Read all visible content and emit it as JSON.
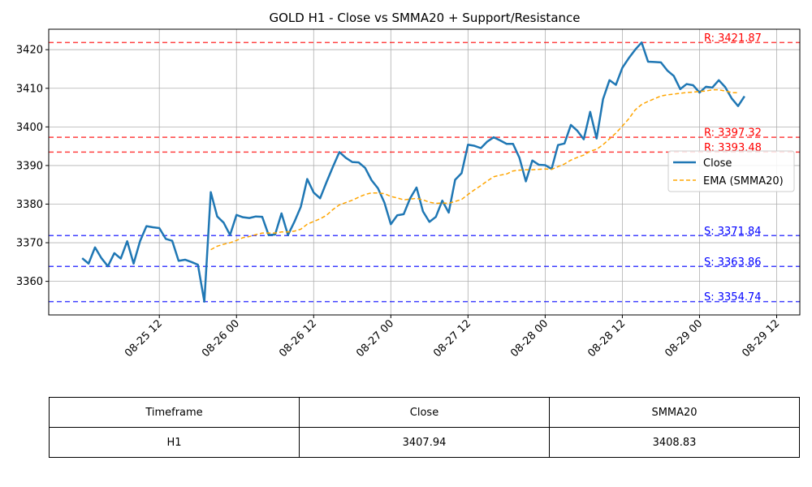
{
  "chart_data": {
    "type": "line",
    "title": "GOLD H1 - Close vs SMMA20 + Support/Resistance",
    "xlabel": "",
    "ylabel": "",
    "x_ticks": [
      "08-25 12",
      "08-26 00",
      "08-26 12",
      "08-27 00",
      "08-27 12",
      "08-28 00",
      "08-28 12",
      "08-29 00",
      "08-29 12"
    ],
    "x_tick_hours": [
      12,
      24,
      36,
      48,
      60,
      72,
      84,
      96,
      108
    ],
    "y_ticks": [
      3360,
      3370,
      3380,
      3390,
      3400,
      3410,
      3420
    ],
    "xlim": [
      -5.2,
      111.6
    ],
    "ylim": [
      3351.3,
      3425.3
    ],
    "grid": true,
    "legend_position": "right",
    "series": [
      {
        "name": "Close",
        "color": "#1f77b4",
        "style": "solid",
        "x_start_hour": 0,
        "values": [
          3366.0,
          3364.6,
          3368.8,
          3366.0,
          3363.9,
          3367.3,
          3365.9,
          3370.4,
          3364.6,
          3370.4,
          3374.3,
          3374.0,
          3373.8,
          3371.0,
          3370.5,
          3365.3,
          3365.6,
          3365.0,
          3364.3,
          3354.74,
          3383.1,
          3376.8,
          3375.2,
          3372.0,
          3377.2,
          3376.6,
          3376.4,
          3376.8,
          3376.7,
          3372.0,
          3372.1,
          3377.6,
          3372.0,
          3375.4,
          3379.3,
          3386.5,
          3383.0,
          3381.5,
          3385.7,
          3389.7,
          3393.48,
          3392.0,
          3390.9,
          3390.8,
          3389.4,
          3386.2,
          3384.1,
          3380.4,
          3374.8,
          3377.1,
          3377.4,
          3381.5,
          3384.3,
          3378.1,
          3375.4,
          3376.7,
          3380.9,
          3377.8,
          3386.3,
          3388.0,
          3395.4,
          3395.1,
          3394.5,
          3396.2,
          3397.32,
          3396.5,
          3395.6,
          3395.6,
          3392.0,
          3385.9,
          3391.3,
          3390.2,
          3390.1,
          3389.1,
          3395.3,
          3395.7,
          3400.5,
          3399.0,
          3396.8,
          3403.9,
          3397.0,
          3407.2,
          3412.1,
          3410.9,
          3415.3,
          3417.8,
          3420.0,
          3421.87,
          3416.9,
          3416.8,
          3416.7,
          3414.6,
          3413.2,
          3409.8,
          3411.1,
          3410.8,
          3408.9,
          3410.4,
          3410.2,
          3412.1,
          3410.3,
          3407.4,
          3405.4,
          3407.94
        ]
      },
      {
        "name": "EMA (SMMA20)",
        "color": "#ffa500",
        "style": "dashed",
        "x_start_hour": 20,
        "values": [
          3368.2,
          3369.1,
          3369.6,
          3370.0,
          3370.6,
          3371.3,
          3371.6,
          3372.1,
          3372.5,
          3372.5,
          3372.5,
          3372.8,
          3372.8,
          3373.0,
          3373.5,
          3374.8,
          3375.5,
          3376.2,
          3377.1,
          3378.6,
          3379.8,
          3380.4,
          3381.0,
          3381.8,
          3382.5,
          3382.9,
          3382.9,
          3382.7,
          3382.0,
          3381.6,
          3381.1,
          3381.3,
          3381.5,
          3381.1,
          3380.5,
          3380.2,
          3380.3,
          3380.2,
          3380.7,
          3381.2,
          3382.5,
          3383.7,
          3384.8,
          3386.0,
          3387.1,
          3387.5,
          3387.8,
          3388.6,
          3388.8,
          3388.9,
          3388.9,
          3389.0,
          3389.1,
          3389.0,
          3389.7,
          3390.4,
          3391.4,
          3392.1,
          3392.7,
          3393.7,
          3394.2,
          3395.4,
          3396.9,
          3398.4,
          3400.2,
          3402.1,
          3404.4,
          3405.8,
          3406.6,
          3407.3,
          3408.0,
          3408.3,
          3408.5,
          3408.7,
          3408.9,
          3409.0,
          3409.2,
          3409.3,
          3409.6,
          3409.6,
          3409.3,
          3408.9,
          3408.83
        ]
      }
    ],
    "levels": [
      {
        "type": "resistance",
        "label": "R: 3421.87",
        "value": 3421.87,
        "color": "#ff0000"
      },
      {
        "type": "resistance",
        "label": "R: 3397.32",
        "value": 3397.32,
        "color": "#ff0000"
      },
      {
        "type": "resistance",
        "label": "R: 3393.48",
        "value": 3393.48,
        "color": "#ff0000"
      },
      {
        "type": "support",
        "label": "S: 3371.84",
        "value": 3371.84,
        "color": "#0000ff"
      },
      {
        "type": "support",
        "label": "S: 3363.86",
        "value": 3363.86,
        "color": "#0000ff"
      },
      {
        "type": "support",
        "label": "S: 3354.74",
        "value": 3354.74,
        "color": "#0000ff"
      }
    ]
  },
  "table": {
    "headers": [
      "Timeframe",
      "Close",
      "SMMA20"
    ],
    "rows": [
      [
        "H1",
        "3407.94",
        "3408.83"
      ]
    ]
  }
}
